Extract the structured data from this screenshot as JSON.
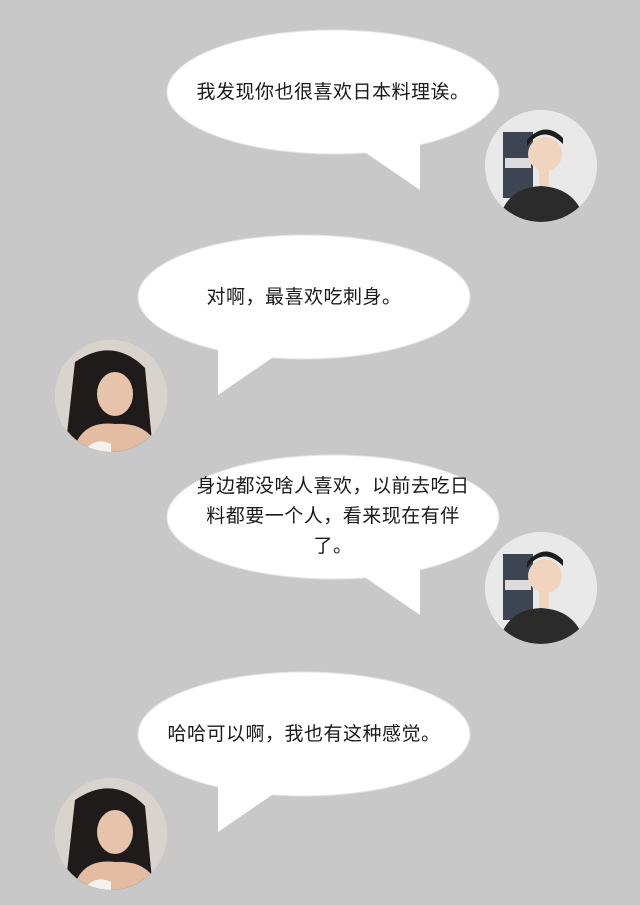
{
  "messages": [
    {
      "sender": "male",
      "text": "我发现你也很喜欢日本料理诶。"
    },
    {
      "sender": "female",
      "text": "对啊，最喜欢吃刺身。"
    },
    {
      "sender": "male",
      "text": "身边都没啥人喜欢，以前去吃日料都要一个人，看来现在有伴了。"
    },
    {
      "sender": "female",
      "text": "哈哈可以啊，我也有这种感觉。"
    }
  ],
  "colors": {
    "background": "#c8c8c8",
    "bubble": "#ffffff",
    "text": "#1a1a1a"
  }
}
